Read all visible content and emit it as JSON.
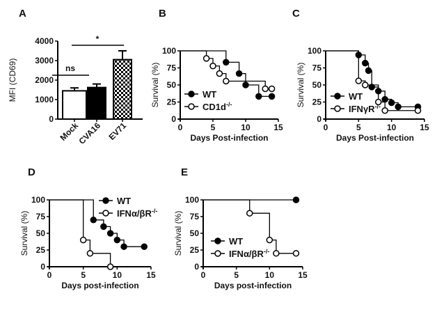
{
  "chart_data": [
    {
      "panel": "A",
      "type": "bar",
      "ylabel": "MFI (CD69)",
      "ylim": [
        0,
        4000
      ],
      "yticks": [
        "0",
        "1000",
        "2000",
        "3000",
        "4000"
      ],
      "categories": [
        "Mock",
        "CVA16",
        "EV71"
      ],
      "values": [
        1450,
        1620,
        3050
      ],
      "errors": [
        150,
        180,
        450
      ],
      "fills": [
        "white",
        "black",
        "checkered"
      ],
      "annotations": [
        {
          "from": "Mock",
          "to": "EV71",
          "label": "*"
        },
        {
          "from": "Mock",
          "to": "CVA16",
          "label": "ns"
        }
      ]
    },
    {
      "panel": "B",
      "type": "line",
      "xlabel": "Days Post-infection",
      "ylabel": "Survival (%)",
      "xlim": [
        0,
        15
      ],
      "ylim": [
        0,
        100
      ],
      "xticks": [
        "0",
        "5",
        "10",
        "15"
      ],
      "yticks": [
        "0",
        "25",
        "50",
        "75",
        "100"
      ],
      "legend": "bottom-left",
      "series": [
        {
          "name": "WT",
          "marker": "filled",
          "steps": [
            [
              0,
              100
            ],
            [
              7,
              83.3
            ],
            [
              9,
              66.7
            ],
            [
              10,
              50
            ],
            [
              12,
              33.3
            ]
          ],
          "end": 14
        },
        {
          "name": "CD1d",
          "sup": "-/-",
          "marker": "open",
          "steps": [
            [
              0,
              100
            ],
            [
              4,
              88.9
            ],
            [
              5,
              77.8
            ],
            [
              6,
              66.7
            ],
            [
              7,
              55.6
            ],
            [
              13,
              44.4
            ]
          ],
          "end": 14
        }
      ]
    },
    {
      "panel": "C",
      "type": "line",
      "xlabel": "Days Post-infection",
      "ylabel": "Survival (%)",
      "xlim": [
        0,
        15
      ],
      "ylim": [
        0,
        100
      ],
      "xticks": [
        "0",
        "5",
        "10",
        "15"
      ],
      "yticks": [
        "0",
        "25",
        "50",
        "75",
        "100"
      ],
      "legend": "bottom-left",
      "series": [
        {
          "name": "WT",
          "marker": "filled",
          "steps": [
            [
              0,
              100
            ],
            [
              5,
              94
            ],
            [
              6,
              82
            ],
            [
              6.5,
              71
            ],
            [
              7,
              47
            ],
            [
              8,
              41
            ],
            [
              9,
              29
            ],
            [
              10,
              24
            ],
            [
              11,
              18
            ]
          ],
          "end": 14
        },
        {
          "name": "IFNγR",
          "sup": "-/-",
          "marker": "open",
          "steps": [
            [
              0,
              100
            ],
            [
              5,
              56
            ],
            [
              6,
              50
            ],
            [
              8,
              25
            ],
            [
              9,
              12.5
            ]
          ],
          "end": 14
        }
      ]
    },
    {
      "panel": "D",
      "type": "line",
      "xlabel": "Days post-infection",
      "ylabel": "Survival (%)",
      "xlim": [
        0,
        15
      ],
      "ylim": [
        0,
        100
      ],
      "xticks": [
        "0",
        "5",
        "10",
        "15"
      ],
      "yticks": [
        "0",
        "25",
        "50",
        "75",
        "100"
      ],
      "legend": "top-right",
      "series": [
        {
          "name": "WT",
          "marker": "filled",
          "steps": [
            [
              0,
              100
            ],
            [
              6.5,
              70
            ],
            [
              8,
              60
            ],
            [
              9,
              50
            ],
            [
              10,
              40
            ],
            [
              11,
              30
            ]
          ],
          "end": 14
        },
        {
          "name": "IFNα/βR",
          "sup": "-/-",
          "marker": "open",
          "steps": [
            [
              0,
              100
            ],
            [
              5,
              40
            ],
            [
              6,
              20
            ],
            [
              9,
              0
            ]
          ],
          "end": 9
        }
      ]
    },
    {
      "panel": "E",
      "type": "line",
      "xlabel": "Days post-infection",
      "ylabel": "Survival (%)",
      "xlim": [
        0,
        15
      ],
      "ylim": [
        0,
        100
      ],
      "xticks": [
        "0",
        "5",
        "10",
        "15"
      ],
      "yticks": [
        "0",
        "25",
        "50",
        "75",
        "100"
      ],
      "legend": "bottom-left",
      "series": [
        {
          "name": "WT",
          "marker": "filled",
          "steps": [
            [
              0,
              100
            ]
          ],
          "end": 14
        },
        {
          "name": "IFNα/βR",
          "sup": "-/-",
          "marker": "open",
          "steps": [
            [
              0,
              100
            ],
            [
              7,
              80
            ],
            [
              10,
              40
            ],
            [
              11,
              20
            ]
          ],
          "end": 14
        }
      ]
    }
  ]
}
